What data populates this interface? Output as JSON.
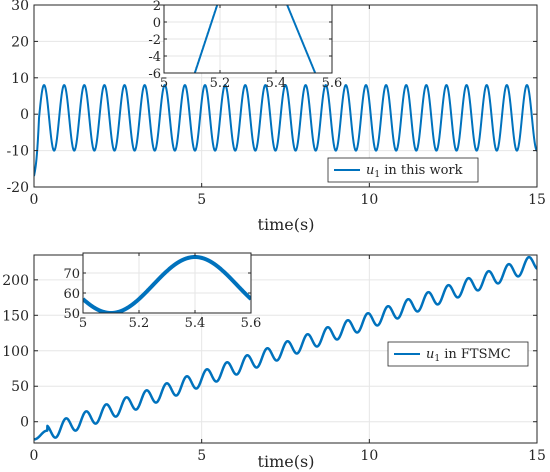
{
  "colors": {
    "line": "#0072BD",
    "grid": "#e6e6e6",
    "axis": "#262626",
    "background": "#ffffff"
  },
  "chart_data": [
    {
      "type": "line",
      "xlabel": "time(s)",
      "ylabel": "",
      "xlim": [
        0,
        15
      ],
      "ylim": [
        -20,
        30
      ],
      "xticks": [
        0,
        5,
        10,
        15
      ],
      "xtick_labels": [
        "0",
        "5",
        "10",
        "15"
      ],
      "yticks": [
        -20,
        -10,
        0,
        10,
        20,
        30
      ],
      "ytick_labels": [
        "-20",
        "-10",
        "0",
        "10",
        "20",
        "30"
      ],
      "grid": true,
      "legend_position": "bottom-right",
      "series": [
        {
          "name_prefix": "u",
          "name_subscript": "1",
          "name_suffix": " in this work",
          "description": "sinusoidal oscillation between about -10 and 8 with initial transient near -17 at t=0",
          "amplitude": 9,
          "offset": -1,
          "period": 0.6,
          "min": -10,
          "max": 8,
          "initial_value": -17
        }
      ],
      "inset": {
        "xlim": [
          5,
          5.6
        ],
        "ylim": [
          -6,
          2
        ],
        "xticks": [
          5,
          5.2,
          5.4,
          5.6
        ],
        "xtick_labels": [
          "5",
          "5.2",
          "5.4",
          "5.6"
        ],
        "yticks": [
          -6,
          -4,
          -2,
          0,
          2
        ],
        "ytick_labels": [
          "-6",
          "-4",
          "-2",
          "0",
          "2"
        ],
        "grid": true
      }
    },
    {
      "type": "line",
      "xlabel": "time(s)",
      "ylabel": "",
      "xlim": [
        0,
        15
      ],
      "ylim": [
        -30,
        235
      ],
      "xticks": [
        0,
        5,
        10,
        15
      ],
      "xtick_labels": [
        "0",
        "5",
        "10",
        "15"
      ],
      "yticks": [
        0,
        50,
        100,
        150,
        200
      ],
      "ytick_labels": [
        "0",
        "50",
        "100",
        "150",
        "200"
      ],
      "grid": true,
      "legend_position": "right",
      "series": [
        {
          "name_prefix": "u",
          "name_subscript": "1",
          "name_suffix": " in FTSMC",
          "description": "linearly increasing trend from about -20 to 225 with superimposed oscillation",
          "start_value": -22,
          "end_value": 225,
          "oscillation_amplitude": 11,
          "period": 0.6
        }
      ],
      "inset": {
        "xlim": [
          5,
          5.6
        ],
        "ylim": [
          50,
          80
        ],
        "xticks": [
          5,
          5.2,
          5.4,
          5.6
        ],
        "xtick_labels": [
          "5",
          "5.2",
          "5.4",
          "5.6"
        ],
        "yticks": [
          50,
          60,
          70
        ],
        "ytick_labels": [
          "50",
          "60",
          "70"
        ],
        "grid": true
      }
    }
  ]
}
